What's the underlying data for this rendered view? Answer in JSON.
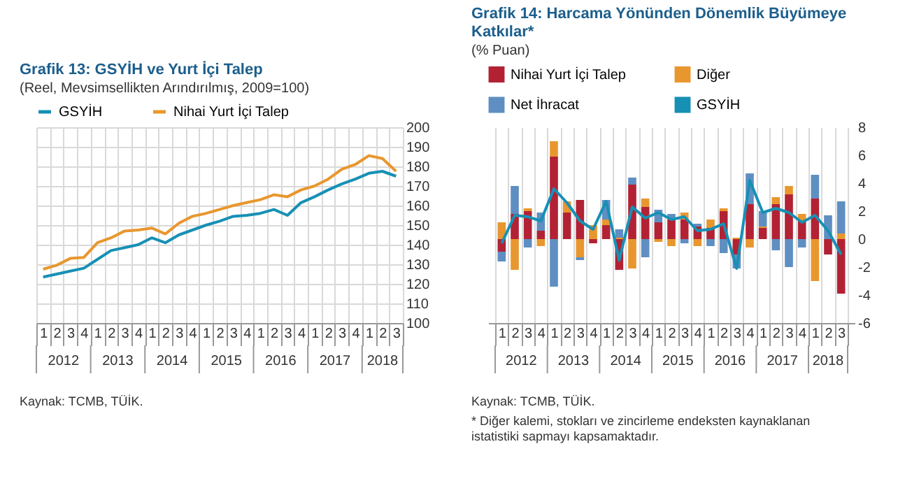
{
  "chart_data": [
    {
      "type": "line",
      "title": "Grafik 13: GSYİH ve Yurt İçi Talep",
      "subtitle": "(Reel, Mevsimsellikten Arındırılmış, 2009=100)",
      "categories": [
        "1",
        "2",
        "3",
        "4",
        "1",
        "2",
        "3",
        "4",
        "1",
        "2",
        "3",
        "4",
        "1",
        "2",
        "3",
        "4",
        "1",
        "2",
        "3",
        "4",
        "1",
        "2",
        "3",
        "4",
        "1",
        "2",
        "3"
      ],
      "series": [
        {
          "name": "GSYİH",
          "color": "#1790b5",
          "values": [
            123.5,
            125,
            126.5,
            128,
            132.5,
            137,
            138.5,
            140,
            143.5,
            141,
            145,
            147.5,
            150,
            152,
            154.5,
            155,
            156,
            158,
            155,
            161.5,
            164.5,
            168,
            171,
            173.5,
            176.5,
            177.5,
            175
          ]
        },
        {
          "name": "Nihai Yurt İçi Talep",
          "color": "#e8972e",
          "values": [
            127.5,
            129.5,
            133,
            133.5,
            141,
            143.5,
            147,
            147.5,
            148.5,
            145.5,
            151,
            154.5,
            156,
            158,
            160,
            161.5,
            163,
            165.5,
            164.5,
            168,
            170,
            173.5,
            178.5,
            181,
            185.5,
            184,
            177.5
          ]
        }
      ],
      "ylim": [
        100,
        200
      ],
      "yticks": [
        100,
        110,
        120,
        130,
        140,
        150,
        160,
        170,
        180,
        190,
        200
      ],
      "grid": true,
      "legend": "top",
      "annotations": [
        "2012",
        "2013",
        "2014",
        "2015",
        "2016",
        "2017",
        "2018",
        "Kaynak: TCMB, TÜİK."
      ]
    },
    {
      "type": "bar",
      "stacked": true,
      "title": "Grafik 14: Harcama Yönünden Dönemlik Büyümeye Katkılar*",
      "subtitle": "(% Puan)",
      "categories": [
        "1",
        "2",
        "3",
        "4",
        "1",
        "2",
        "3",
        "4",
        "1",
        "2",
        "3",
        "4",
        "1",
        "2",
        "3",
        "4",
        "1",
        "2",
        "3",
        "4",
        "1",
        "2",
        "3",
        "4",
        "1",
        "2",
        "3"
      ],
      "series": [
        {
          "name": "Nihai Yurt İçi Talep",
          "color": "#b22234",
          "values": [
            -0.9,
            1.8,
            2.0,
            0.6,
            5.9,
            1.9,
            2.8,
            -0.3,
            1.0,
            -2.2,
            3.9,
            2.3,
            1.2,
            1.4,
            1.4,
            0.9,
            0.8,
            2.0,
            -1.1,
            2.5,
            0.8,
            2.5,
            3.2,
            1.3,
            2.9,
            -1.1,
            -3.9
          ]
        },
        {
          "name": "Diğer",
          "color": "#e8972e",
          "values": [
            1.2,
            -2.2,
            0.2,
            -0.5,
            1.1,
            0.8,
            -1.3,
            1.0,
            0.4,
            0.1,
            -2.1,
            0.6,
            -0.2,
            -0.5,
            0.5,
            -0.5,
            0.6,
            0.2,
            0.1,
            -0.6,
            0.1,
            0.5,
            0.6,
            0.5,
            -3.0,
            0.0,
            0.4
          ]
        },
        {
          "name": "Net İhracat",
          "color": "#5f8fc2",
          "values": [
            -0.7,
            2.0,
            -0.6,
            1.3,
            -3.4,
            0.0,
            -0.2,
            0.0,
            1.4,
            0.6,
            0.5,
            -1.3,
            0.9,
            0.4,
            -0.3,
            0.2,
            -0.5,
            -1.0,
            -1.0,
            2.2,
            1.1,
            -0.8,
            -2.0,
            -0.6,
            1.7,
            1.7,
            2.3
          ]
        },
        {
          "name": "GSYİH",
          "type": "line",
          "color": "#1790b5",
          "values": [
            -0.3,
            1.7,
            1.6,
            1.3,
            3.6,
            2.6,
            1.3,
            0.7,
            2.7,
            -1.5,
            2.3,
            1.5,
            1.9,
            1.4,
            1.6,
            0.6,
            0.7,
            1.1,
            -2.1,
            4.2,
            1.9,
            2.2,
            1.9,
            1.2,
            1.7,
            0.6,
            -1.1
          ]
        }
      ],
      "ylim": [
        -6,
        8
      ],
      "yticks": [
        -6,
        -4,
        -2,
        0,
        2,
        4,
        6,
        8
      ],
      "grid": "x",
      "legend": "top",
      "annotations": [
        "2012",
        "2013",
        "2014",
        "2015",
        "2016",
        "2017",
        "2018",
        "Kaynak: TCMB, TÜİK.",
        "* Diğer kalemi, stokları ve zincirleme endeksten kaynaklanan istatistiki sapmayı kapsamaktadır."
      ]
    }
  ]
}
